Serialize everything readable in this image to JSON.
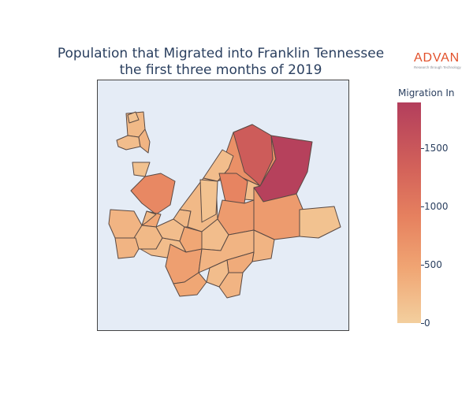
{
  "title": {
    "line1": "Population that Migrated into Franklin Tennessee",
    "line2": "the first three months of 2019"
  },
  "logo": {
    "name": "ADVAN",
    "tagline": "Research through Technology"
  },
  "legend": {
    "title": "Migration In",
    "min": 0,
    "max": 1890,
    "ticks": [
      "1500",
      "1000",
      "500",
      "0"
    ],
    "tick_values": [
      1500,
      1000,
      500,
      0
    ],
    "colorscale": [
      "#f3cf9e",
      "#f0a573",
      "#e6815f",
      "#d3625a",
      "#b33e5c"
    ]
  },
  "colors": {
    "map_background": "#e5ecf6",
    "region_outline": "#5a4a44",
    "title_text": "#2a3f5f",
    "logo_accent": "#e2502a"
  },
  "regions": [
    {
      "id": "r1",
      "value": 250
    },
    {
      "id": "r2",
      "value": 200
    },
    {
      "id": "r3",
      "value": 300
    },
    {
      "id": "r4",
      "value": 150
    },
    {
      "id": "r5",
      "value": 850
    },
    {
      "id": "r6",
      "value": 750
    },
    {
      "id": "r7",
      "value": 200
    },
    {
      "id": "r8",
      "value": 200
    },
    {
      "id": "r9",
      "value": 1500
    },
    {
      "id": "r10",
      "value": 1850
    },
    {
      "id": "r11",
      "value": 900
    },
    {
      "id": "r12",
      "value": 600
    },
    {
      "id": "r13",
      "value": 450
    },
    {
      "id": "r14",
      "value": 600
    },
    {
      "id": "r15",
      "value": 150
    },
    {
      "id": "r16",
      "value": 300
    },
    {
      "id": "r17",
      "value": 250
    },
    {
      "id": "r18",
      "value": 300
    },
    {
      "id": "r19",
      "value": 200
    },
    {
      "id": "r20",
      "value": 250
    },
    {
      "id": "r21",
      "value": 450
    },
    {
      "id": "r22",
      "value": 200
    },
    {
      "id": "r23",
      "value": 250
    },
    {
      "id": "r24",
      "value": 150
    },
    {
      "id": "r25",
      "value": 200
    },
    {
      "id": "r26",
      "value": 550
    },
    {
      "id": "r27",
      "value": 300
    },
    {
      "id": "r28",
      "value": 300
    },
    {
      "id": "r29",
      "value": 400
    },
    {
      "id": "r30",
      "value": 200
    },
    {
      "id": "r31",
      "value": 450
    },
    {
      "id": "r32",
      "value": 300
    },
    {
      "id": "r33",
      "value": 250
    },
    {
      "id": "r34",
      "value": 150
    }
  ]
}
